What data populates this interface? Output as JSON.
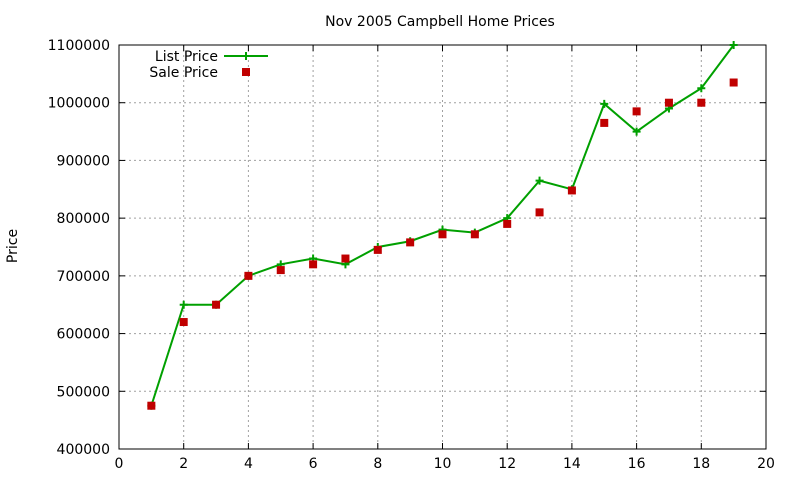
{
  "chart_data": {
    "type": "line",
    "title": "Nov 2005 Campbell Home Prices",
    "xlabel": "",
    "ylabel": "Price",
    "xlim": [
      0,
      20
    ],
    "ylim": [
      400000,
      1100000
    ],
    "xticks": [
      0,
      2,
      4,
      6,
      8,
      10,
      12,
      14,
      16,
      18,
      20
    ],
    "yticks": [
      400000,
      500000,
      600000,
      700000,
      800000,
      900000,
      1000000,
      1100000
    ],
    "grid": true,
    "legend_position": "top-left",
    "series": [
      {
        "name": "List Price",
        "style": "line+cross",
        "color": "#00a000",
        "x": [
          1,
          2,
          3,
          4,
          5,
          6,
          7,
          8,
          9,
          10,
          11,
          12,
          13,
          14,
          15,
          16,
          17,
          18,
          19
        ],
        "values": [
          475000,
          650000,
          650000,
          700000,
          720000,
          730000,
          720000,
          750000,
          760000,
          780000,
          775000,
          800000,
          865000,
          850000,
          998000,
          950000,
          990000,
          1025000,
          1100000
        ]
      },
      {
        "name": "Sale Price",
        "style": "square",
        "color": "#c00000",
        "x": [
          1,
          2,
          3,
          4,
          5,
          6,
          7,
          8,
          9,
          10,
          11,
          12,
          13,
          14,
          15,
          16,
          17,
          18,
          19
        ],
        "values": [
          475000,
          620000,
          650000,
          700000,
          710000,
          720000,
          730000,
          745000,
          758000,
          772000,
          772000,
          790000,
          810000,
          848000,
          965000,
          985000,
          1000000,
          1000000,
          1035000
        ]
      }
    ]
  }
}
